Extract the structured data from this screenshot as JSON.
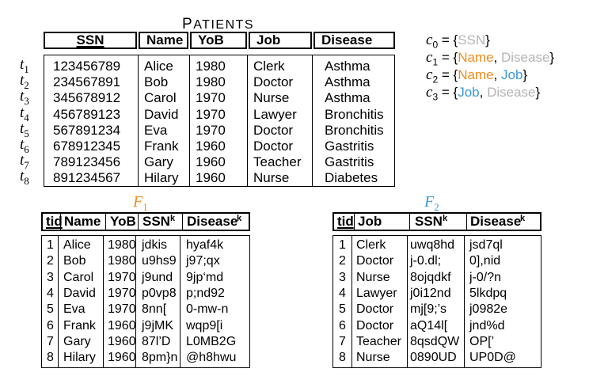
{
  "patients": {
    "title_first": "P",
    "title_rest": "ATIENTS",
    "headers": [
      "SSN",
      "Name",
      "YoB",
      "Job",
      "Disease"
    ],
    "row_labels": [
      "1",
      "2",
      "3",
      "4",
      "5",
      "6",
      "7",
      "8"
    ],
    "row_label_symbol": "t",
    "rows": [
      [
        "123456789",
        "Alice",
        "1980",
        "Clerk",
        "Asthma"
      ],
      [
        "234567891",
        "Bob",
        "1980",
        "Doctor",
        "Asthma"
      ],
      [
        "345678912",
        "Carol",
        "1970",
        "Nurse",
        "Asthma"
      ],
      [
        "456789123",
        "David",
        "1970",
        "Lawyer",
        "Bronchitis"
      ],
      [
        "567891234",
        "Eva",
        "1970",
        "Doctor",
        "Bronchitis"
      ],
      [
        "678912345",
        "Frank",
        "1960",
        "Doctor",
        "Gastritis"
      ],
      [
        "789123456",
        "Gary",
        "1960",
        "Teacher",
        "Gastritis"
      ],
      [
        "891234567",
        "Hilary",
        "1960",
        "Nurse",
        "Diabetes"
      ]
    ]
  },
  "constraints": [
    {
      "symbol": "c",
      "index": "0",
      "items": [
        {
          "text": "SSN",
          "color": "gray"
        }
      ]
    },
    {
      "symbol": "c",
      "index": "1",
      "items": [
        {
          "text": "Name",
          "color": "orange"
        },
        {
          "text": "Disease",
          "color": "gray"
        }
      ]
    },
    {
      "symbol": "c",
      "index": "2",
      "items": [
        {
          "text": "Name",
          "color": "orange"
        },
        {
          "text": "Job",
          "color": "blue"
        }
      ]
    },
    {
      "symbol": "c",
      "index": "3",
      "items": [
        {
          "text": "Job",
          "color": "blue"
        },
        {
          "text": "Disease",
          "color": "gray"
        }
      ]
    }
  ],
  "colors": {
    "orange": "#f28c1e",
    "blue": "#3a9ad9",
    "gray": "#b5b5b5"
  },
  "fragment1": {
    "symbol": "F",
    "index": "1",
    "title_color": "#f28c1e",
    "headers": [
      "tid",
      "Name",
      "YoB",
      "SSN",
      "Disease"
    ],
    "header_sup": [
      "",
      "",
      "",
      "k",
      "k"
    ],
    "rows": [
      [
        "1",
        "Alice",
        "1980",
        "jdkis",
        "hyaf4k"
      ],
      [
        "2",
        "Bob",
        "1980",
        "u9hs9",
        "j97;qx"
      ],
      [
        "3",
        "Carol",
        "1970",
        "j9und",
        "9jp‘md"
      ],
      [
        "4",
        "David",
        "1970",
        "p0vp8",
        "p;nd92"
      ],
      [
        "5",
        "Eva",
        "1970",
        "8nn[",
        "0-mw-n"
      ],
      [
        "6",
        "Frank",
        "1960",
        "j9jMK",
        "wqp9[i"
      ],
      [
        "7",
        "Gary",
        "1960",
        "87l’D",
        "L0MB2G"
      ],
      [
        "8",
        "Hilary",
        "1960",
        "8pm}n",
        "@h8hwu"
      ]
    ]
  },
  "fragment2": {
    "symbol": "F",
    "index": "2",
    "title_color": "#3a9ad9",
    "headers": [
      "tid",
      "Job",
      "SSN",
      "Disease"
    ],
    "header_sup": [
      "",
      "",
      "k",
      "k"
    ],
    "rows": [
      [
        "1",
        "Clerk",
        "uwq8hd",
        "jsd7ql"
      ],
      [
        "2",
        "Doctor",
        "j-0.dl;",
        "0],nid"
      ],
      [
        "3",
        "Nurse",
        "8ojqdkf",
        "j-0/?n"
      ],
      [
        "4",
        "Lawyer",
        "j0i12nd",
        "5lkdpq"
      ],
      [
        "5",
        "Doctor",
        "mj[9;’s",
        "j0982e"
      ],
      [
        "6",
        "Doctor",
        "aQ14l[",
        "jnd%d"
      ],
      [
        "7",
        "Teacher",
        "8qsdQW",
        "OP[’"
      ],
      [
        "8",
        "Nurse",
        "0890UD",
        "UP0D@"
      ]
    ]
  }
}
